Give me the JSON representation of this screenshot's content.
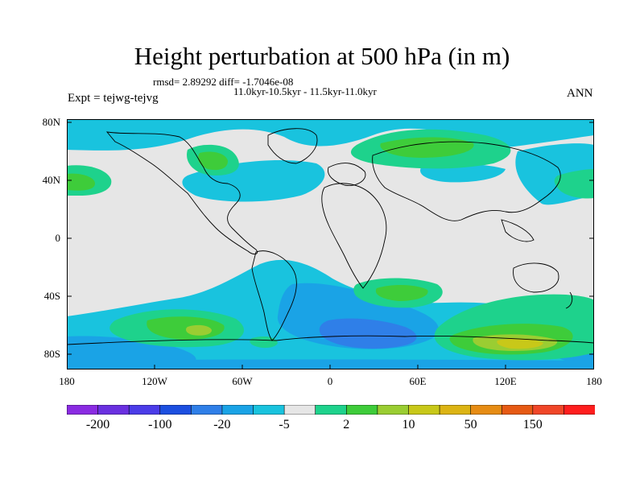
{
  "title": "Height perturbation at 500 hPa (in m)",
  "stats": "rmsd= 2.89292 diff= -1.7046e-08",
  "period": "11.0kyr-10.5kyr - 11.5kyr-11.0kyr",
  "experiment": "Expt = tejwg-tejvg",
  "season": "ANN",
  "lat_labels": [
    "80N",
    "40N",
    "0",
    "40S",
    "80S"
  ],
  "lon_labels": [
    "180",
    "120W",
    "60W",
    "0",
    "60E",
    "120E",
    "180"
  ],
  "colorbar": {
    "colors": [
      "#8a2be2",
      "#6a30e0",
      "#4b3ce8",
      "#1c4fe0",
      "#2f7fe8",
      "#1aa3e6",
      "#19c3de",
      "#e6e6e6",
      "#1ed28c",
      "#3ecc3a",
      "#9acd32",
      "#c8c819",
      "#dcb414",
      "#e68c14",
      "#e65a14",
      "#f04628",
      "#ff1e1e"
    ],
    "labels": [
      "-200",
      "-100",
      "-20",
      "-5",
      "2",
      "10",
      "50",
      "150"
    ]
  },
  "map_colors": {
    "background": "#e6e6e6",
    "neg_light": "#19c3de",
    "neg_mid": "#1aa3e6",
    "neg_dark": "#2f7fe8",
    "pos_light": "#1ed28c",
    "pos_mid": "#3ecc3a",
    "pos_high": "#9acd32",
    "pos_max": "#c8c819"
  }
}
